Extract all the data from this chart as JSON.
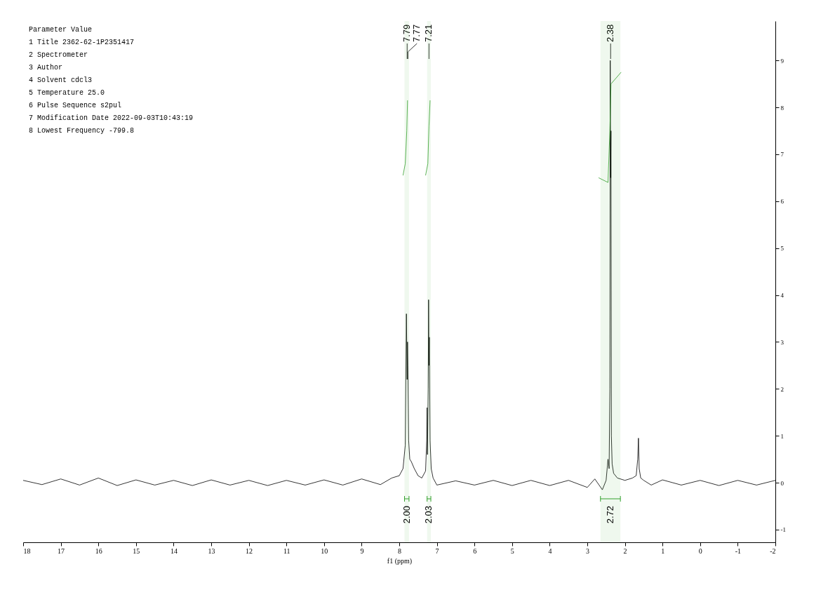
{
  "chart_data": {
    "type": "line",
    "xlabel": "f1 (ppm)",
    "xlim": [
      18,
      -2
    ],
    "xticks": [
      18,
      17,
      16,
      15,
      14,
      13,
      12,
      11,
      10,
      9,
      8,
      7,
      6,
      5,
      4,
      3,
      2,
      1,
      0,
      -1,
      -2
    ],
    "ylim": [
      -1.27,
      9.84
    ],
    "yticks": [
      -1,
      0,
      1,
      2,
      3,
      4,
      5,
      6,
      7,
      8,
      9
    ],
    "grid": false,
    "ref_lines": [
      {
        "axis": "x",
        "value": 7.79,
        "label": "7.79"
      },
      {
        "axis": "x",
        "value": 7.77,
        "label": "7.77"
      },
      {
        "axis": "x",
        "value": 7.21,
        "label": "7.21"
      },
      {
        "axis": "x",
        "value": 2.38,
        "label": "2.38"
      }
    ],
    "bands": [
      {
        "axis": "x",
        "from": 7.86,
        "to": 7.74,
        "label": "2.00",
        "color": "#33a02c"
      },
      {
        "axis": "x",
        "from": 7.26,
        "to": 7.16,
        "label": "2.03",
        "color": "#33a02c"
      },
      {
        "axis": "x",
        "from": 2.65,
        "to": 2.12,
        "label": "2.72",
        "color": "#33a02c"
      }
    ],
    "series": [
      {
        "color": "#000000",
        "x": [
          18,
          17.5,
          17,
          16.5,
          16,
          15.5,
          15,
          14.5,
          14,
          13.5,
          13,
          12.5,
          12,
          11.5,
          11,
          10.5,
          10,
          9.5,
          9,
          8.5,
          8.2,
          8.0,
          7.9,
          7.84,
          7.81,
          7.79,
          7.78,
          7.77,
          7.75,
          7.72,
          7.68,
          7.6,
          7.5,
          7.4,
          7.3,
          7.27,
          7.26,
          7.25,
          7.23,
          7.22,
          7.21,
          7.2,
          7.18,
          7.15,
          7.1,
          7.0,
          6.5,
          6,
          5.5,
          5,
          4.5,
          4,
          3.5,
          3,
          2.8,
          2.6,
          2.5,
          2.45,
          2.42,
          2.4,
          2.39,
          2.38,
          2.37,
          2.36,
          2.34,
          2.3,
          2.2,
          2.0,
          1.8,
          1.7,
          1.66,
          1.64,
          1.62,
          1.58,
          1.5,
          1.3,
          1,
          0.5,
          0,
          -0.5,
          -1,
          -1.5,
          -2
        ],
        "values": [
          0.05,
          -0.04,
          0.08,
          -0.05,
          0.1,
          -0.06,
          0.06,
          -0.05,
          0.05,
          -0.06,
          0.06,
          -0.05,
          0.05,
          -0.06,
          0.05,
          -0.05,
          0.06,
          -0.05,
          0.08,
          -0.04,
          0.1,
          0.15,
          0.3,
          0.8,
          3.6,
          2.2,
          3.0,
          2.5,
          0.9,
          0.5,
          0.45,
          0.3,
          0.15,
          0.1,
          0.25,
          0.9,
          1.6,
          0.6,
          2.0,
          3.9,
          2.5,
          3.1,
          0.9,
          0.3,
          0.1,
          -0.05,
          0.04,
          -0.05,
          0.05,
          -0.06,
          0.05,
          -0.06,
          0.05,
          -0.1,
          0.08,
          -0.15,
          0.05,
          0.5,
          0.3,
          2.0,
          9.0,
          6.5,
          7.5,
          1.0,
          0.4,
          0.2,
          0.1,
          0.05,
          0.1,
          0.15,
          0.5,
          0.95,
          0.3,
          0.1,
          0.05,
          -0.05,
          0.06,
          -0.05,
          0.05,
          -0.06,
          0.05,
          -0.05,
          0.05
        ]
      },
      {
        "color": "#33a02c",
        "x": [
          7.9,
          7.84,
          7.8,
          7.78
        ],
        "values": [
          6.55,
          6.8,
          7.5,
          8.15
        ]
      },
      {
        "color": "#33a02c",
        "x": [
          7.3,
          7.24,
          7.21,
          7.18
        ],
        "values": [
          6.55,
          6.8,
          7.6,
          8.15
        ]
      },
      {
        "color": "#33a02c",
        "x": [
          2.7,
          2.45,
          2.4,
          2.37,
          2.1
        ],
        "values": [
          6.5,
          6.4,
          7.5,
          8.5,
          8.75
        ]
      }
    ],
    "annotations": [
      "Parameter          Value",
      "1 Title             2362-62-1P2351417",
      "2 Spectrometer",
      "3 Author",
      "4 Solvent           cdcl3",
      "5 Temperature       25.0",
      "6 Pulse Sequence    s2pul",
      "7 Modification Date 2022-09-03T10:43:19",
      "8 Lowest Frequency  -799.8"
    ]
  }
}
